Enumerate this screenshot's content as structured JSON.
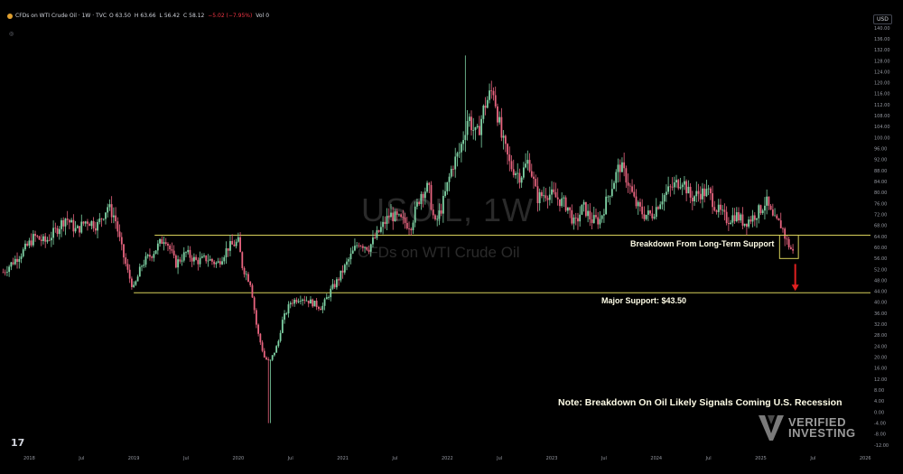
{
  "header": {
    "symbol_desc": "CFDs on WTI Crude Oil · 1W · TVC",
    "open_label": "O",
    "open": "63.50",
    "high_label": "H",
    "high": "63.66",
    "low_label": "L",
    "low": "56.42",
    "close_label": "C",
    "close": "58.12",
    "change": "−5.02 (−7.95%)",
    "vol_label": "Vol",
    "vol_value": "0"
  },
  "currency_label": "USD",
  "watermark": {
    "symbol": "USOIL, 1W",
    "description": "CFDs on WTI Crude Oil"
  },
  "annotations": {
    "breakdown": "Breakdown From Long-Term Support",
    "major_support": "Major Support: $43.50",
    "note": "Note: Breakdown On Oil Likely Signals Coming U.S. Recession"
  },
  "brand": {
    "line1": "VERIFIED",
    "line2": "INVESTING"
  },
  "colors": {
    "up": "#7fd3a5",
    "down": "#e8647f",
    "support_line": "#d8d15a",
    "arrow": "#e02020",
    "box": "#d8d15a"
  },
  "chart_data": {
    "type": "candlestick",
    "title": "USOIL, 1W",
    "subtitle": "CFDs on WTI Crude Oil",
    "y_axis": {
      "position": "right",
      "ticks": [
        -12,
        -8,
        -4,
        0,
        4,
        8,
        12,
        16,
        20,
        24,
        28,
        32,
        36,
        40,
        44,
        48,
        52,
        56,
        60,
        64,
        68,
        72,
        76,
        80,
        84,
        88,
        92,
        96,
        100,
        104,
        108,
        112,
        116,
        120,
        124,
        128,
        132,
        136,
        140
      ],
      "ylim": [
        -12,
        140
      ]
    },
    "x_axis": {
      "ticks": [
        "2018",
        "Jul",
        "2019",
        "Jul",
        "2020",
        "Jul",
        "2021",
        "Jul",
        "2022",
        "Jul",
        "2023",
        "Jul",
        "2024",
        "Jul",
        "2025",
        "Jul",
        "2026"
      ],
      "tick_dates": [
        2018.0,
        2018.5,
        2019.0,
        2019.5,
        2020.0,
        2020.5,
        2021.0,
        2021.5,
        2022.0,
        2022.5,
        2023.0,
        2023.5,
        2024.0,
        2024.5,
        2025.0,
        2025.5,
        2026.0
      ],
      "xlim": [
        2017.72,
        2026.05
      ]
    },
    "series": [
      {
        "name": "USOIL",
        "points": [
          [
            2017.75,
            51
          ],
          [
            2017.85,
            55
          ],
          [
            2017.95,
            59
          ],
          [
            2018.05,
            64
          ],
          [
            2018.15,
            62
          ],
          [
            2018.25,
            66
          ],
          [
            2018.35,
            71
          ],
          [
            2018.45,
            66
          ],
          [
            2018.55,
            70
          ],
          [
            2018.65,
            68
          ],
          [
            2018.75,
            75
          ],
          [
            2018.82,
            71
          ],
          [
            2018.88,
            60
          ],
          [
            2018.95,
            50
          ],
          [
            2019.0,
            45
          ],
          [
            2019.08,
            54
          ],
          [
            2019.18,
            58
          ],
          [
            2019.3,
            64
          ],
          [
            2019.4,
            54
          ],
          [
            2019.5,
            58
          ],
          [
            2019.6,
            55
          ],
          [
            2019.7,
            56
          ],
          [
            2019.8,
            54
          ],
          [
            2019.9,
            60
          ],
          [
            2020.0,
            62
          ],
          [
            2020.04,
            53
          ],
          [
            2020.12,
            47
          ],
          [
            2020.18,
            30
          ],
          [
            2020.25,
            20
          ],
          [
            2020.3,
            18
          ],
          [
            2020.38,
            25
          ],
          [
            2020.42,
            33
          ],
          [
            2020.5,
            40
          ],
          [
            2020.6,
            42
          ],
          [
            2020.7,
            40
          ],
          [
            2020.8,
            38
          ],
          [
            2020.88,
            44
          ],
          [
            2020.95,
            48
          ],
          [
            2021.05,
            55
          ],
          [
            2021.15,
            62
          ],
          [
            2021.25,
            60
          ],
          [
            2021.35,
            66
          ],
          [
            2021.45,
            72
          ],
          [
            2021.55,
            70
          ],
          [
            2021.65,
            68
          ],
          [
            2021.75,
            80
          ],
          [
            2021.82,
            82
          ],
          [
            2021.88,
            68
          ],
          [
            2021.95,
            75
          ],
          [
            2022.05,
            90
          ],
          [
            2022.12,
            95
          ],
          [
            2022.2,
            108
          ],
          [
            2022.28,
            100
          ],
          [
            2022.36,
            112
          ],
          [
            2022.44,
            118
          ],
          [
            2022.52,
            100
          ],
          [
            2022.6,
            90
          ],
          [
            2022.7,
            86
          ],
          [
            2022.78,
            92
          ],
          [
            2022.86,
            78
          ],
          [
            2022.95,
            80
          ],
          [
            2023.05,
            78
          ],
          [
            2023.15,
            75
          ],
          [
            2023.22,
            68
          ],
          [
            2023.3,
            75
          ],
          [
            2023.38,
            70
          ],
          [
            2023.46,
            70
          ],
          [
            2023.55,
            80
          ],
          [
            2023.65,
            90
          ],
          [
            2023.72,
            85
          ],
          [
            2023.8,
            76
          ],
          [
            2023.88,
            72
          ],
          [
            2023.96,
            72
          ],
          [
            2024.05,
            78
          ],
          [
            2024.15,
            82
          ],
          [
            2024.25,
            85
          ],
          [
            2024.33,
            78
          ],
          [
            2024.42,
            80
          ],
          [
            2024.5,
            80
          ],
          [
            2024.58,
            74
          ],
          [
            2024.68,
            70
          ],
          [
            2024.76,
            72
          ],
          [
            2024.84,
            69
          ],
          [
            2024.92,
            71
          ],
          [
            2025.0,
            74
          ],
          [
            2025.05,
            77
          ],
          [
            2025.12,
            70
          ],
          [
            2025.2,
            68
          ],
          [
            2025.24,
            63
          ],
          [
            2025.28,
            60
          ],
          [
            2025.31,
            58.12
          ]
        ]
      }
    ],
    "horizontal_levels": [
      {
        "label": "Breakdown From Long-Term Support",
        "value": 64.5
      },
      {
        "label": "Major Support: $43.50",
        "value": 43.5
      }
    ],
    "highlight_box": {
      "x_start": 2025.18,
      "x_end": 2025.36,
      "y_low": 56,
      "y_high": 64.5
    },
    "arrow": {
      "x": 2025.33,
      "y_from": 54,
      "y_to": 44.5
    },
    "grid": false
  }
}
